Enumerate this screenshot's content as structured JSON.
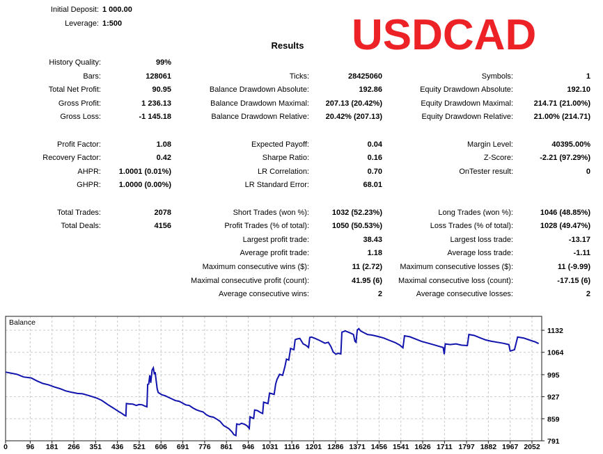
{
  "header": {
    "summary": [
      {
        "label": "Initial Deposit:",
        "value": "1 000.00"
      },
      {
        "label": "Leverage:",
        "value": "1:500"
      }
    ],
    "results_title": "Results",
    "symbol": "USDCAD",
    "symbol_color": "#EC2227"
  },
  "stats": {
    "columns": [
      {
        "rows": [
          {
            "i": 0,
            "l": "History Quality:",
            "v": "99%"
          },
          {
            "i": 1,
            "l": "Bars:",
            "v": "128061"
          },
          {
            "i": 2,
            "l": "Total Net Profit:",
            "v": "90.95"
          },
          {
            "i": 3,
            "l": "Gross Profit:",
            "v": "1 236.13"
          },
          {
            "i": 4,
            "l": "Gross Loss:",
            "v": "-1 145.18"
          },
          {
            "i": 6,
            "l": "Profit Factor:",
            "v": "1.08"
          },
          {
            "i": 7,
            "l": "Recovery Factor:",
            "v": "0.42"
          },
          {
            "i": 8,
            "l": "AHPR:",
            "v": "1.0001 (0.01%)"
          },
          {
            "i": 9,
            "l": "GHPR:",
            "v": "1.0000 (0.00%)"
          },
          {
            "i": 11,
            "l": "Total Trades:",
            "v": "2078"
          },
          {
            "i": 12,
            "l": "Total Deals:",
            "v": "4156"
          }
        ]
      },
      {
        "rows": [
          {
            "i": 1,
            "l": "Ticks:",
            "v": "28425060"
          },
          {
            "i": 2,
            "l": "Balance Drawdown Absolute:",
            "v": "192.86"
          },
          {
            "i": 3,
            "l": "Balance Drawdown Maximal:",
            "v": "207.13 (20.42%)"
          },
          {
            "i": 4,
            "l": "Balance Drawdown Relative:",
            "v": "20.42% (207.13)"
          },
          {
            "i": 6,
            "l": "Expected Payoff:",
            "v": "0.04"
          },
          {
            "i": 7,
            "l": "Sharpe Ratio:",
            "v": "0.16"
          },
          {
            "i": 8,
            "l": "LR Correlation:",
            "v": "0.70"
          },
          {
            "i": 9,
            "l": "LR Standard Error:",
            "v": "68.01"
          },
          {
            "i": 11,
            "l": "Short Trades (won %):",
            "v": "1032 (52.23%)"
          },
          {
            "i": 12,
            "l": "Profit Trades (% of total):",
            "v": "1050 (50.53%)"
          },
          {
            "i": 13,
            "l": "Largest profit trade:",
            "v": "38.43"
          },
          {
            "i": 14,
            "l": "Average profit trade:",
            "v": "1.18"
          },
          {
            "i": 15,
            "l": "Maximum consecutive wins ($):",
            "v": "11 (2.72)"
          },
          {
            "i": 16,
            "l": "Maximal consecutive profit (count):",
            "v": "41.95 (6)"
          },
          {
            "i": 17,
            "l": "Average consecutive wins:",
            "v": "2"
          }
        ]
      },
      {
        "rows": [
          {
            "i": 1,
            "l": "Symbols:",
            "v": "1"
          },
          {
            "i": 2,
            "l": "Equity Drawdown Absolute:",
            "v": "192.10"
          },
          {
            "i": 3,
            "l": "Equity Drawdown Maximal:",
            "v": "214.71 (21.00%)"
          },
          {
            "i": 4,
            "l": "Equity Drawdown Relative:",
            "v": "21.00% (214.71)"
          },
          {
            "i": 6,
            "l": "Margin Level:",
            "v": "40395.00%"
          },
          {
            "i": 7,
            "l": "Z-Score:",
            "v": "-2.21 (97.29%)"
          },
          {
            "i": 8,
            "l": "OnTester result:",
            "v": "0"
          },
          {
            "i": 11,
            "l": "Long Trades (won %):",
            "v": "1046 (48.85%)"
          },
          {
            "i": 12,
            "l": "Loss Trades (% of total):",
            "v": "1028 (49.47%)"
          },
          {
            "i": 13,
            "l": "Largest loss trade:",
            "v": "-13.17"
          },
          {
            "i": 14,
            "l": "Average loss trade:",
            "v": "-1.11"
          },
          {
            "i": 15,
            "l": "Maximum consecutive losses ($):",
            "v": "11 (-9.99)"
          },
          {
            "i": 16,
            "l": "Maximal consecutive loss (count):",
            "v": "-17.15 (6)"
          },
          {
            "i": 17,
            "l": "Average consecutive losses:",
            "v": "2"
          }
        ]
      }
    ]
  },
  "chart_data": {
    "type": "line",
    "title": "Balance",
    "xlabel": "",
    "ylabel": "",
    "xlim": [
      0,
      2090
    ],
    "ylim": [
      791,
      1175
    ],
    "x_ticks": [
      0,
      96,
      181,
      266,
      351,
      436,
      521,
      606,
      691,
      776,
      861,
      946,
      1031,
      1116,
      1201,
      1286,
      1371,
      1456,
      1541,
      1626,
      1711,
      1797,
      1882,
      1967,
      2052
    ],
    "y_ticks": [
      791,
      859,
      927,
      995,
      1064,
      1132
    ],
    "grid": true,
    "legend_position": "top-left",
    "line_color": "#1113AD",
    "grid_color": "#c9c9c9",
    "border_color": "#1a1a1a",
    "series": [
      {
        "name": "Balance",
        "points": [
          [
            0,
            1003
          ],
          [
            20,
            1000
          ],
          [
            45,
            996
          ],
          [
            70,
            988
          ],
          [
            100,
            985
          ],
          [
            122,
            976
          ],
          [
            145,
            968
          ],
          [
            167,
            964
          ],
          [
            190,
            957
          ],
          [
            212,
            952
          ],
          [
            234,
            945
          ],
          [
            256,
            941
          ],
          [
            280,
            937
          ],
          [
            300,
            936
          ],
          [
            322,
            931
          ],
          [
            334,
            928
          ],
          [
            355,
            923
          ],
          [
            374,
            916
          ],
          [
            387,
            909
          ],
          [
            400,
            902
          ],
          [
            414,
            895
          ],
          [
            428,
            888
          ],
          [
            441,
            881
          ],
          [
            454,
            875
          ],
          [
            463,
            870
          ],
          [
            469,
            868
          ],
          [
            471,
            906
          ],
          [
            480,
            905
          ],
          [
            496,
            904
          ],
          [
            510,
            900
          ],
          [
            520,
            903
          ],
          [
            533,
            902
          ],
          [
            543,
            898
          ],
          [
            551,
            896
          ],
          [
            554,
            965
          ],
          [
            558,
            966
          ],
          [
            562,
            993
          ],
          [
            566,
            970
          ],
          [
            571,
            1009
          ],
          [
            576,
            1016
          ],
          [
            580,
            996
          ],
          [
            583,
            1003
          ],
          [
            587,
            976
          ],
          [
            591,
            952
          ],
          [
            595,
            940
          ],
          [
            609,
            933
          ],
          [
            622,
            930
          ],
          [
            635,
            925
          ],
          [
            649,
            920
          ],
          [
            662,
            915
          ],
          [
            676,
            913
          ],
          [
            689,
            908
          ],
          [
            702,
            902
          ],
          [
            716,
            900
          ],
          [
            729,
            893
          ],
          [
            743,
            887
          ],
          [
            756,
            883
          ],
          [
            770,
            880
          ],
          [
            783,
            871
          ],
          [
            796,
            866
          ],
          [
            810,
            864
          ],
          [
            823,
            858
          ],
          [
            836,
            851
          ],
          [
            850,
            838
          ],
          [
            863,
            832
          ],
          [
            871,
            828
          ],
          [
            882,
            819
          ],
          [
            890,
            810
          ],
          [
            898,
            807
          ],
          [
            901,
            843
          ],
          [
            911,
            841
          ],
          [
            920,
            845
          ],
          [
            931,
            842
          ],
          [
            940,
            838
          ],
          [
            946,
            833
          ],
          [
            950,
            829
          ],
          [
            953,
            865
          ],
          [
            960,
            862
          ],
          [
            967,
            860
          ],
          [
            971,
            886
          ],
          [
            982,
            884
          ],
          [
            994,
            878
          ],
          [
            1002,
            875
          ],
          [
            1006,
            910
          ],
          [
            1015,
            908
          ],
          [
            1023,
            906
          ],
          [
            1029,
            938
          ],
          [
            1039,
            936
          ],
          [
            1047,
            934
          ],
          [
            1053,
            966
          ],
          [
            1058,
            980
          ],
          [
            1068,
            996
          ],
          [
            1080,
            993
          ],
          [
            1089,
            1020
          ],
          [
            1095,
            1043
          ],
          [
            1104,
            1040
          ],
          [
            1111,
            1076
          ],
          [
            1124,
            1072
          ],
          [
            1129,
            1103
          ],
          [
            1136,
            1105
          ],
          [
            1147,
            1107
          ],
          [
            1160,
            1090
          ],
          [
            1170,
            1086
          ],
          [
            1181,
            1079
          ],
          [
            1186,
            1110
          ],
          [
            1192,
            1111
          ],
          [
            1203,
            1108
          ],
          [
            1223,
            1101
          ],
          [
            1245,
            1092
          ],
          [
            1258,
            1095
          ],
          [
            1268,
            1082
          ],
          [
            1277,
            1065
          ],
          [
            1288,
            1058
          ],
          [
            1297,
            1061
          ],
          [
            1307,
            1059
          ],
          [
            1311,
            1126
          ],
          [
            1324,
            1130
          ],
          [
            1343,
            1124
          ],
          [
            1356,
            1119
          ],
          [
            1362,
            1098
          ],
          [
            1366,
            1095
          ],
          [
            1371,
            1133
          ],
          [
            1377,
            1137
          ],
          [
            1384,
            1130
          ],
          [
            1393,
            1126
          ],
          [
            1411,
            1119
          ],
          [
            1429,
            1117
          ],
          [
            1451,
            1113
          ],
          [
            1474,
            1108
          ],
          [
            1496,
            1101
          ],
          [
            1519,
            1094
          ],
          [
            1537,
            1086
          ],
          [
            1549,
            1078
          ],
          [
            1555,
            1115
          ],
          [
            1576,
            1112
          ],
          [
            1598,
            1105
          ],
          [
            1621,
            1098
          ],
          [
            1643,
            1093
          ],
          [
            1666,
            1088
          ],
          [
            1688,
            1083
          ],
          [
            1706,
            1079
          ],
          [
            1710,
            1058
          ],
          [
            1714,
            1090
          ],
          [
            1733,
            1088
          ],
          [
            1756,
            1090
          ],
          [
            1778,
            1086
          ],
          [
            1800,
            1085
          ],
          [
            1806,
            1119
          ],
          [
            1827,
            1116
          ],
          [
            1849,
            1109
          ],
          [
            1872,
            1102
          ],
          [
            1894,
            1098
          ],
          [
            1917,
            1095
          ],
          [
            1939,
            1092
          ],
          [
            1962,
            1088
          ],
          [
            1967,
            1068
          ],
          [
            1984,
            1072
          ],
          [
            1996,
            1111
          ],
          [
            2020,
            1108
          ],
          [
            2042,
            1102
          ],
          [
            2065,
            1096
          ],
          [
            2078,
            1091
          ]
        ]
      }
    ]
  }
}
